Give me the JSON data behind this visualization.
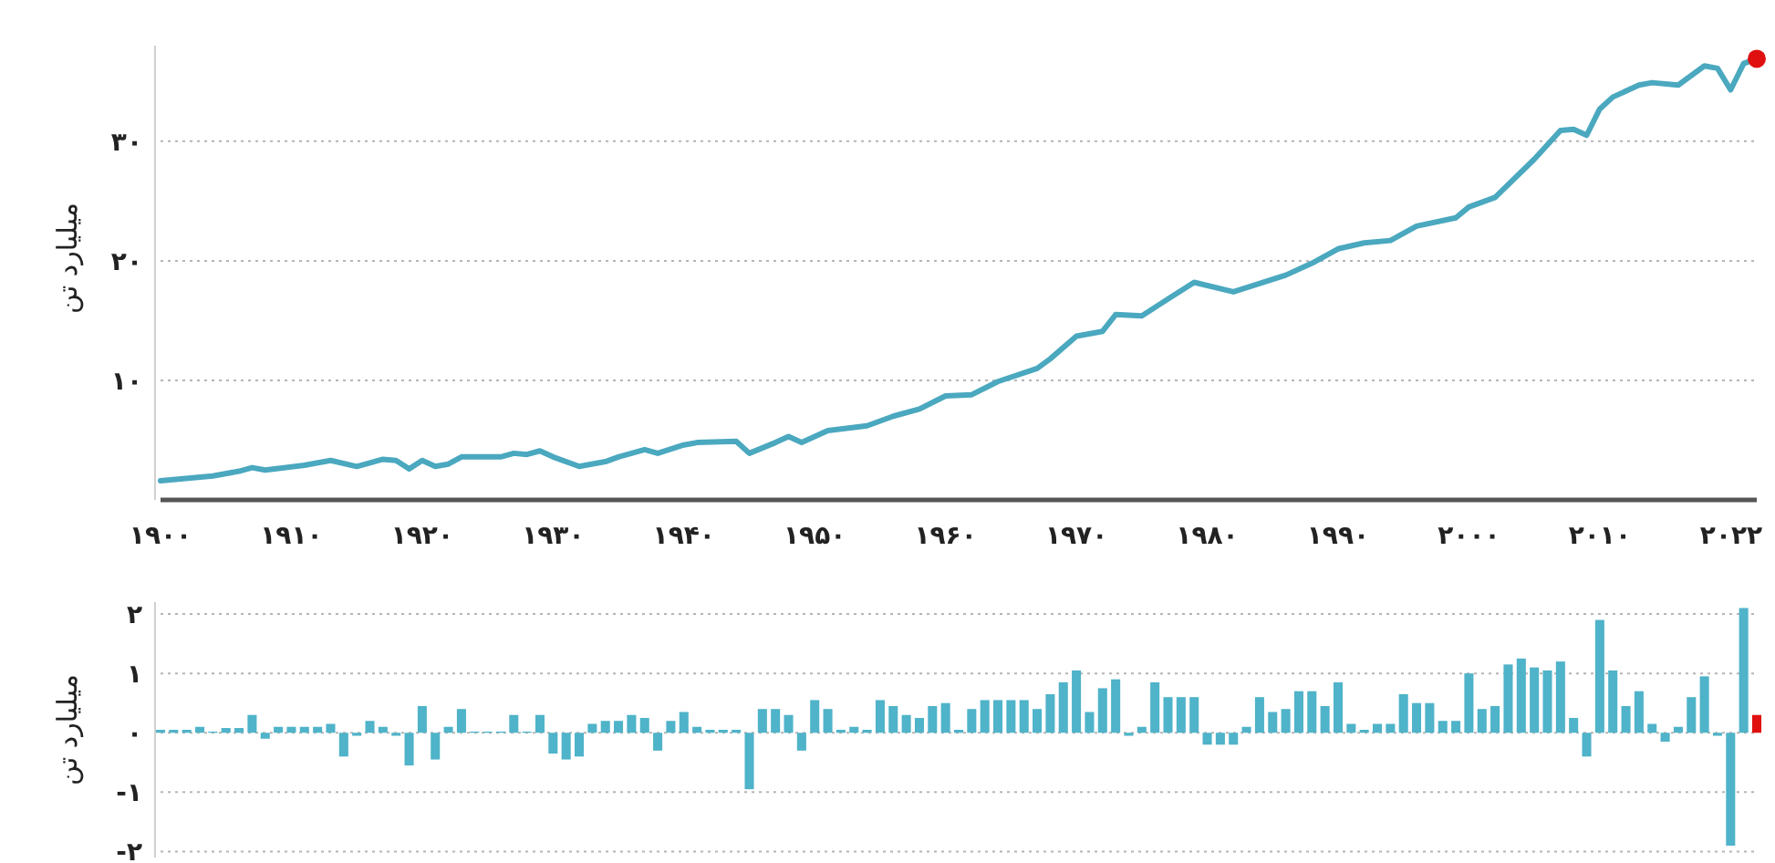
{
  "chart_data": [
    {
      "type": "line",
      "ylabel": "میلیارد تن",
      "xlim": [
        1900,
        2022
      ],
      "ylim": [
        0,
        38
      ],
      "grid": "y",
      "xticks": [
        {
          "value": 1900,
          "label": "۱۹۰۰"
        },
        {
          "value": 1910,
          "label": "۱۹۱۰"
        },
        {
          "value": 1920,
          "label": "۱۹۲۰"
        },
        {
          "value": 1930,
          "label": "۱۹۳۰"
        },
        {
          "value": 1940,
          "label": "۱۹۴۰"
        },
        {
          "value": 1950,
          "label": "۱۹۵۰"
        },
        {
          "value": 1960,
          "label": "۱۹۶۰"
        },
        {
          "value": 1970,
          "label": "۱۹۷۰"
        },
        {
          "value": 1980,
          "label": "۱۹۸۰"
        },
        {
          "value": 1990,
          "label": "۱۹۹۰"
        },
        {
          "value": 2000,
          "label": "۲۰۰۰"
        },
        {
          "value": 2010,
          "label": "۲۰۱۰"
        },
        {
          "value": 2022,
          "label": "۲۰۲۲"
        }
      ],
      "yticks": [
        {
          "value": 10,
          "label": "۱۰"
        },
        {
          "value": 20,
          "label": "۲۰"
        },
        {
          "value": 30,
          "label": "۳۰"
        }
      ],
      "series": [
        {
          "color": "#4aa8bf",
          "x": [
            1900,
            1904,
            1906,
            1907,
            1908,
            1911,
            1913,
            1915,
            1917,
            1918,
            1919,
            1920,
            1921,
            1922,
            1923,
            1926,
            1927,
            1928,
            1929,
            1930,
            1932,
            1934,
            1935,
            1937,
            1938,
            1940,
            1941,
            1944,
            1945,
            1947,
            1948,
            1949,
            1951,
            1954,
            1956,
            1958,
            1960,
            1962,
            1964,
            1967,
            1968,
            1970,
            1972,
            1973,
            1975,
            1977,
            1979,
            1982,
            1986,
            1988,
            1990,
            1992,
            1994,
            1996,
            1999,
            2000,
            2002,
            2005,
            2007,
            2008,
            2009,
            2010,
            2011,
            2013,
            2014,
            2016,
            2018,
            2019,
            2020,
            2021,
            2022
          ],
          "values": [
            1.6,
            2.0,
            2.4,
            2.7,
            2.5,
            2.9,
            3.3,
            2.8,
            3.4,
            3.3,
            2.6,
            3.3,
            2.8,
            3.0,
            3.6,
            3.6,
            3.9,
            3.8,
            4.1,
            3.6,
            2.8,
            3.2,
            3.6,
            4.2,
            3.9,
            4.6,
            4.8,
            4.9,
            3.9,
            4.8,
            5.3,
            4.8,
            5.8,
            6.2,
            7.0,
            7.6,
            8.7,
            8.8,
            9.9,
            11.0,
            11.8,
            13.7,
            14.1,
            15.5,
            15.4,
            16.8,
            18.2,
            17.4,
            18.8,
            19.8,
            21.0,
            21.5,
            21.7,
            22.9,
            23.6,
            24.5,
            25.3,
            28.5,
            30.9,
            31.0,
            30.5,
            32.7,
            33.7,
            34.7,
            34.9,
            34.7,
            36.3,
            36.1,
            34.3,
            36.5,
            36.9
          ]
        },
        {
          "type": "scatter",
          "color": "#e01010",
          "x": [
            2022
          ],
          "values": [
            36.9
          ]
        }
      ]
    },
    {
      "type": "bar",
      "ylabel": "میلیارد تن",
      "xlim": [
        1900,
        2022
      ],
      "ylim": [
        -2.1,
        2.2
      ],
      "grid": "y",
      "tick_labels": "y",
      "yticks": [
        {
          "value": 2,
          "label": "۲"
        },
        {
          "value": 1,
          "label": "۱"
        },
        {
          "value": 0,
          "label": "۰"
        },
        {
          "value": -1,
          "label": "-۱"
        },
        {
          "value": -2,
          "label": "-۲"
        }
      ],
      "series": [
        {
          "color": "#4fb3c9",
          "x": [
            1900,
            1901,
            1902,
            1903,
            1904,
            1905,
            1906,
            1907,
            1908,
            1909,
            1910,
            1911,
            1912,
            1913,
            1914,
            1915,
            1916,
            1917,
            1918,
            1919,
            1920,
            1921,
            1922,
            1923,
            1924,
            1925,
            1926,
            1927,
            1928,
            1929,
            1930,
            1931,
            1932,
            1933,
            1934,
            1935,
            1936,
            1937,
            1938,
            1939,
            1940,
            1941,
            1942,
            1943,
            1944,
            1945,
            1946,
            1947,
            1948,
            1949,
            1950,
            1951,
            1952,
            1953,
            1954,
            1955,
            1956,
            1957,
            1958,
            1959,
            1960,
            1961,
            1962,
            1963,
            1964,
            1965,
            1966,
            1967,
            1968,
            1969,
            1970,
            1971,
            1972,
            1973,
            1974,
            1975,
            1976,
            1977,
            1978,
            1979,
            1980,
            1981,
            1982,
            1983,
            1984,
            1985,
            1986,
            1987,
            1988,
            1989,
            1990,
            1991,
            1992,
            1993,
            1994,
            1995,
            1996,
            1997,
            1998,
            1999,
            2000,
            2001,
            2002,
            2003,
            2004,
            2005,
            2006,
            2007,
            2008,
            2009,
            2010,
            2011,
            2012,
            2013,
            2014,
            2015,
            2016,
            2017,
            2018,
            2019,
            2020,
            2021
          ],
          "values": [
            0.05,
            0.05,
            0.05,
            0.1,
            0.02,
            0.08,
            0.08,
            0.3,
            -0.1,
            0.1,
            0.1,
            0.1,
            0.1,
            0.15,
            -0.4,
            -0.05,
            0.2,
            0.1,
            -0.05,
            -0.55,
            0.45,
            -0.45,
            0.1,
            0.4,
            0.02,
            0.02,
            0.02,
            0.3,
            0.02,
            0.3,
            -0.35,
            -0.45,
            -0.4,
            0.15,
            0.2,
            0.2,
            0.3,
            0.25,
            -0.3,
            0.2,
            0.35,
            0.1,
            0.05,
            0.05,
            0.05,
            -0.95,
            0.4,
            0.4,
            0.3,
            -0.3,
            0.55,
            0.4,
            0.05,
            0.1,
            0.05,
            0.55,
            0.45,
            0.3,
            0.25,
            0.45,
            0.5,
            0.05,
            0.4,
            0.55,
            0.55,
            0.55,
            0.55,
            0.4,
            0.65,
            0.85,
            1.05,
            0.35,
            0.75,
            0.9,
            -0.05,
            0.1,
            0.85,
            0.6,
            0.6,
            0.6,
            -0.2,
            -0.2,
            -0.2,
            0.1,
            0.6,
            0.35,
            0.4,
            0.7,
            0.7,
            0.45,
            0.85,
            0.15,
            0.05,
            0.15,
            0.15,
            0.65,
            0.5,
            0.5,
            0.2,
            0.2,
            1.0,
            0.4,
            0.45,
            1.15,
            1.25,
            1.1,
            1.05,
            1.2,
            0.25,
            -0.4,
            1.9,
            1.05,
            0.45,
            0.7,
            0.15,
            -0.15,
            0.1,
            0.6,
            0.95,
            -0.05,
            -1.9,
            2.1
          ]
        },
        {
          "color": "#e01010",
          "x": [
            2022
          ],
          "values": [
            0.3
          ]
        }
      ]
    }
  ]
}
